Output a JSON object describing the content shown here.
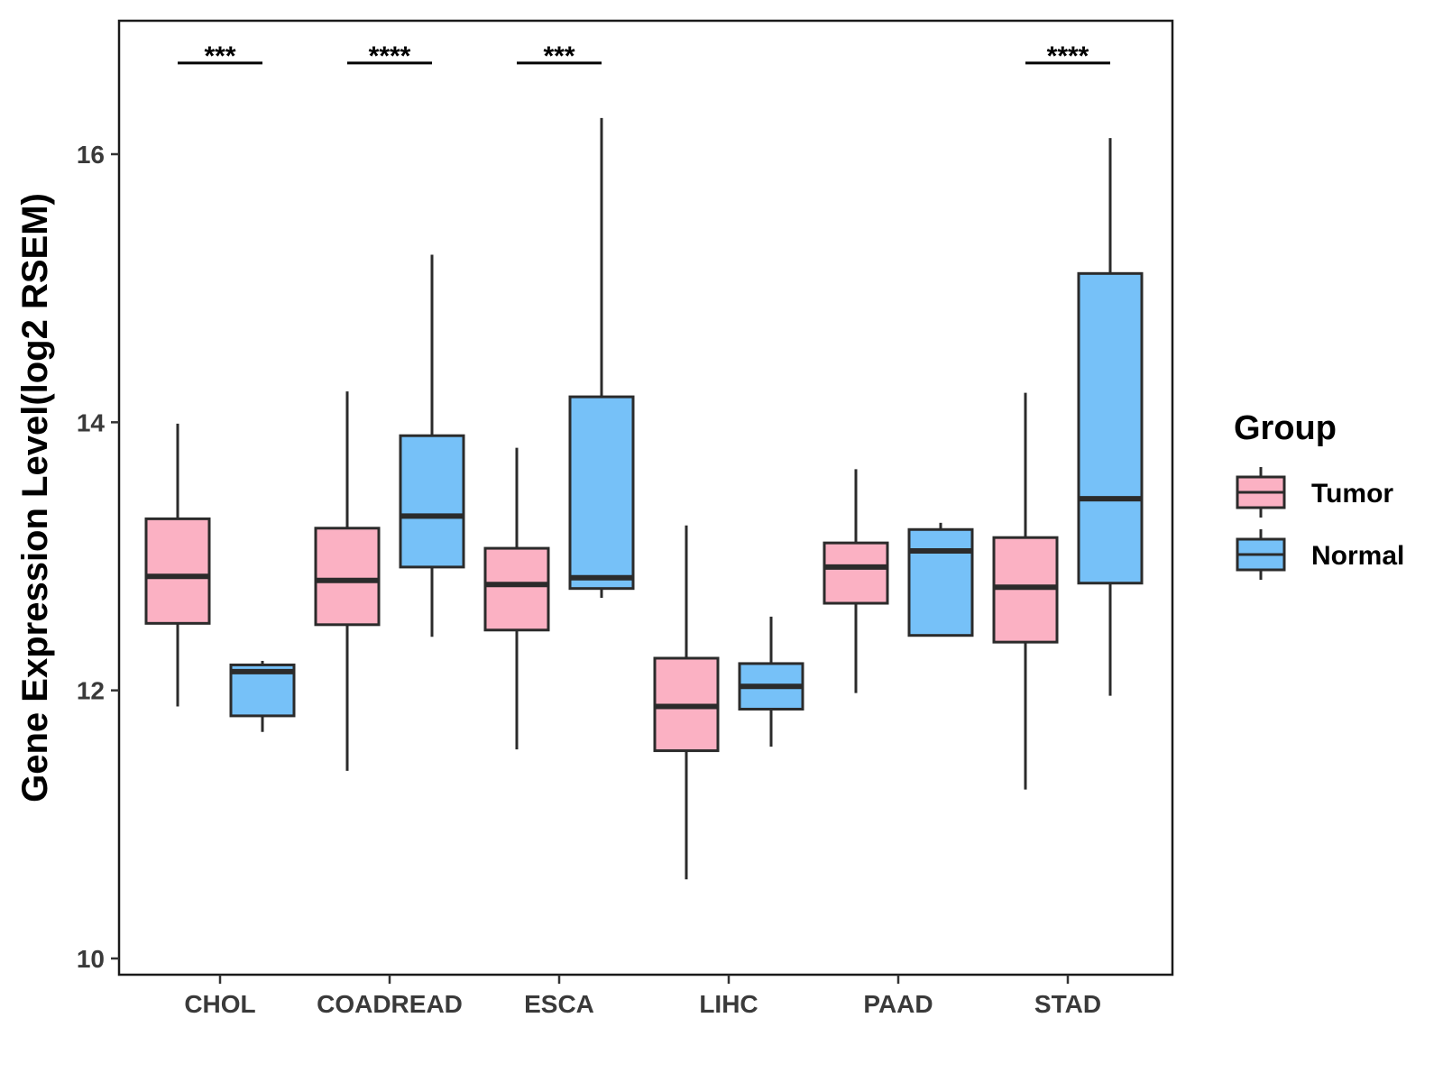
{
  "chart_data": {
    "type": "boxplot",
    "title": "",
    "xlabel": "",
    "ylabel": "Gene Expression Level(log2 RSEM)",
    "ylim": [
      9.9,
      17.0
    ],
    "yticks": [
      10,
      12,
      14,
      16
    ],
    "ytick_labels": [
      "10",
      "12",
      "14",
      "16"
    ],
    "grid": false,
    "categories": [
      "CHOL",
      "COADREAD",
      "ESCA",
      "LIHC",
      "PAAD",
      "STAD"
    ],
    "significance": [
      "***",
      "****",
      "***",
      "",
      "",
      "****"
    ],
    "significance_y": 16.68,
    "legend": {
      "title": "Group",
      "position": "right",
      "entries": [
        "Tumor",
        "Normal"
      ]
    },
    "series": [
      {
        "name": "Tumor",
        "color": "#FBB1C3",
        "boxes": [
          {
            "whisker_low": 11.88,
            "q1": 12.5,
            "median": 12.85,
            "q3": 13.28,
            "whisker_high": 13.99
          },
          {
            "whisker_low": 11.4,
            "q1": 12.49,
            "median": 12.82,
            "q3": 13.21,
            "whisker_high": 14.23
          },
          {
            "whisker_low": 11.56,
            "q1": 12.45,
            "median": 12.79,
            "q3": 13.06,
            "whisker_high": 13.81
          },
          {
            "whisker_low": 10.59,
            "q1": 11.55,
            "median": 11.88,
            "q3": 12.24,
            "whisker_high": 13.23
          },
          {
            "whisker_low": 11.98,
            "q1": 12.65,
            "median": 12.92,
            "q3": 13.1,
            "whisker_high": 13.65
          },
          {
            "whisker_low": 11.26,
            "q1": 12.36,
            "median": 12.77,
            "q3": 13.14,
            "whisker_high": 14.22
          }
        ]
      },
      {
        "name": "Normal",
        "color": "#76C1F8",
        "boxes": [
          {
            "whisker_low": 11.69,
            "q1": 11.81,
            "median": 12.14,
            "q3": 12.19,
            "whisker_high": 12.22
          },
          {
            "whisker_low": 12.4,
            "q1": 12.92,
            "median": 13.3,
            "q3": 13.9,
            "whisker_high": 15.25
          },
          {
            "whisker_low": 12.69,
            "q1": 12.76,
            "median": 12.84,
            "q3": 14.19,
            "whisker_high": 16.27
          },
          {
            "whisker_low": 11.58,
            "q1": 11.86,
            "median": 12.03,
            "q3": 12.2,
            "whisker_high": 12.55
          },
          {
            "whisker_low": 12.41,
            "q1": 12.41,
            "median": 13.04,
            "q3": 13.2,
            "whisker_high": 13.25
          },
          {
            "whisker_low": 11.96,
            "q1": 12.8,
            "median": 13.43,
            "q3": 15.11,
            "whisker_high": 16.12
          }
        ]
      }
    ]
  }
}
